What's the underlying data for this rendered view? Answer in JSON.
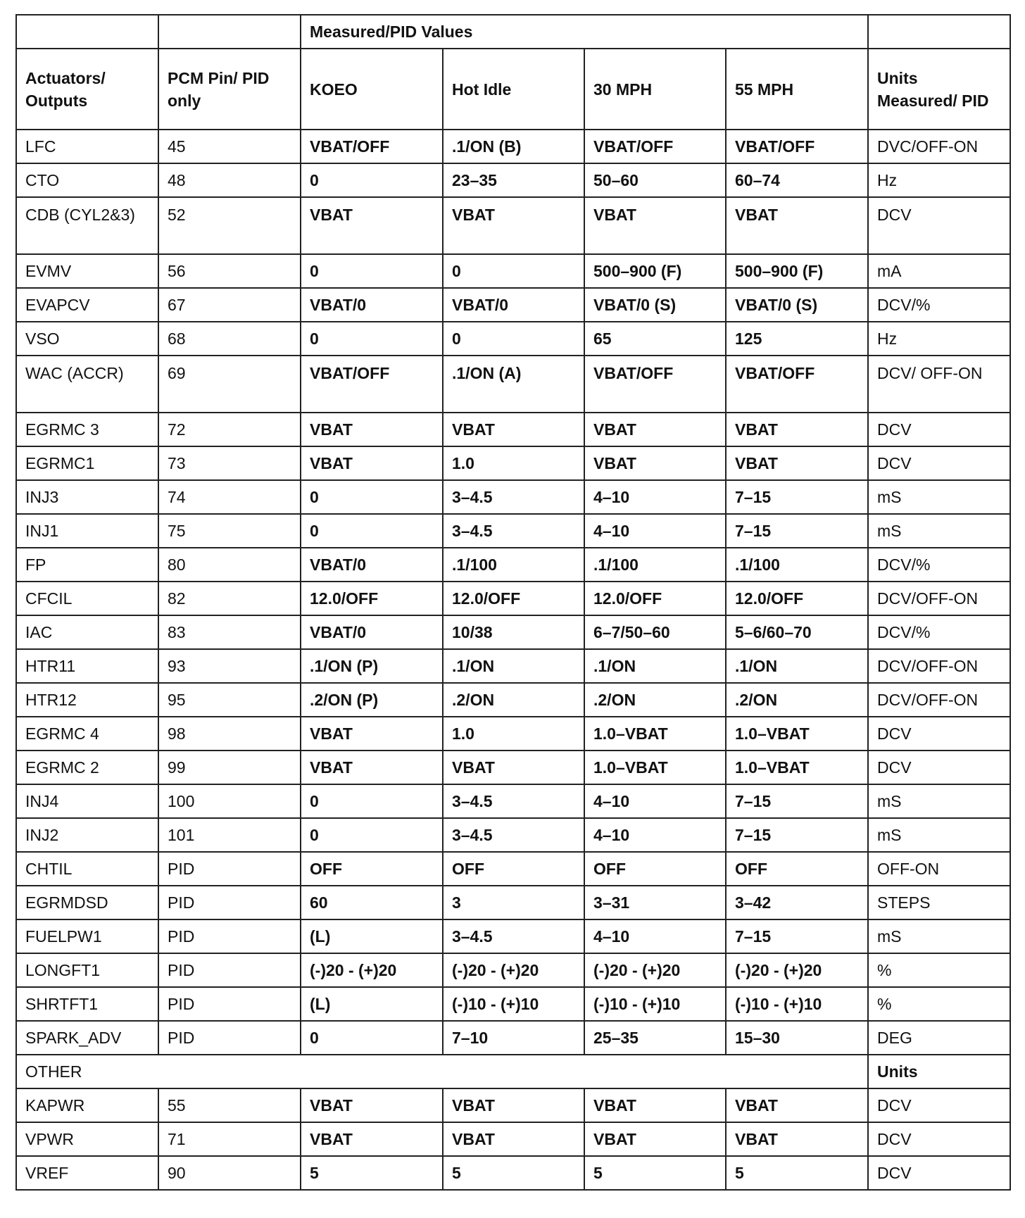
{
  "header": {
    "group_label": "Measured/PID Values",
    "columns": [
      "Actuators/ Outputs",
      "PCM Pin/ PID only",
      "KOEO",
      "Hot Idle",
      "30 MPH",
      "55 MPH",
      "Units Measured/ PID"
    ]
  },
  "rows": [
    [
      "LFC",
      "45",
      "VBAT/OFF",
      ".1/ON (B)",
      "VBAT/OFF",
      "VBAT/OFF",
      "DVC/OFF-ON"
    ],
    [
      "CTO",
      "48",
      "0",
      "23–35",
      "50–60",
      "60–74",
      "Hz"
    ],
    [
      "CDB (CYL2&3)",
      "52",
      "VBAT",
      "VBAT",
      "VBAT",
      "VBAT",
      "DCV"
    ],
    [
      "EVMV",
      "56",
      "0",
      "0",
      "500–900 (F)",
      "500–900 (F)",
      "mA"
    ],
    [
      "EVAPCV",
      "67",
      "VBAT/0",
      "VBAT/0",
      "VBAT/0 (S)",
      "VBAT/0 (S)",
      "DCV/%"
    ],
    [
      "VSO",
      "68",
      "0",
      "0",
      "65",
      "125",
      "Hz"
    ],
    [
      "WAC (ACCR)",
      "69",
      "VBAT/OFF",
      ".1/ON (A)",
      "VBAT/OFF",
      "VBAT/OFF",
      "DCV/ OFF-ON"
    ],
    [
      "EGRMC 3",
      "72",
      "VBAT",
      "VBAT",
      "VBAT",
      "VBAT",
      "DCV"
    ],
    [
      "EGRMC1",
      "73",
      "VBAT",
      "1.0",
      "VBAT",
      "VBAT",
      "DCV"
    ],
    [
      "INJ3",
      "74",
      "0",
      "3–4.5",
      "4–10",
      "7–15",
      "mS"
    ],
    [
      "INJ1",
      "75",
      "0",
      "3–4.5",
      "4–10",
      "7–15",
      "mS"
    ],
    [
      "FP",
      "80",
      "VBAT/0",
      ".1/100",
      ".1/100",
      ".1/100",
      "DCV/%"
    ],
    [
      "CFCIL",
      "82",
      "12.0/OFF",
      "12.0/OFF",
      "12.0/OFF",
      "12.0/OFF",
      "DCV/OFF-ON"
    ],
    [
      "IAC",
      "83",
      "VBAT/0",
      "10/38",
      "6–7/50–60",
      "5–6/60–70",
      "DCV/%"
    ],
    [
      "HTR11",
      "93",
      ".1/ON (P)",
      ".1/ON",
      ".1/ON",
      ".1/ON",
      "DCV/OFF-ON"
    ],
    [
      "HTR12",
      "95",
      ".2/ON (P)",
      ".2/ON",
      ".2/ON",
      ".2/ON",
      "DCV/OFF-ON"
    ],
    [
      "EGRMC 4",
      "98",
      "VBAT",
      "1.0",
      "1.0–VBAT",
      "1.0–VBAT",
      "DCV"
    ],
    [
      "EGRMC 2",
      "99",
      "VBAT",
      "VBAT",
      "1.0–VBAT",
      "1.0–VBAT",
      "DCV"
    ],
    [
      "INJ4",
      "100",
      "0",
      "3–4.5",
      "4–10",
      "7–15",
      "mS"
    ],
    [
      "INJ2",
      "101",
      "0",
      "3–4.5",
      "4–10",
      "7–15",
      "mS"
    ],
    [
      "CHTIL",
      "PID",
      "OFF",
      "OFF",
      "OFF",
      "OFF",
      "OFF-ON"
    ],
    [
      "EGRMDSD",
      "PID",
      "60",
      "3",
      "3–31",
      "3–42",
      "STEPS"
    ],
    [
      "FUELPW1",
      "PID",
      "(L)",
      "3–4.5",
      "4–10",
      "7–15",
      "mS"
    ],
    [
      "LONGFT1",
      "PID",
      "(-)20 - (+)20",
      "(-)20 - (+)20",
      "(-)20 - (+)20",
      "(-)20 - (+)20",
      "%"
    ],
    [
      "SHRTFT1",
      "PID",
      "(L)",
      "(-)10 - (+)10",
      "(-)10 - (+)10",
      "(-)10 - (+)10",
      "%"
    ],
    [
      "SPARK_ADV",
      "PID",
      "0",
      "7–10",
      "25–35",
      "15–30",
      "DEG"
    ]
  ],
  "other": {
    "label": "OTHER",
    "units_label": "Units",
    "rows": [
      [
        "KAPWR",
        "55",
        "VBAT",
        "VBAT",
        "VBAT",
        "VBAT",
        "DCV"
      ],
      [
        "VPWR",
        "71",
        "VBAT",
        "VBAT",
        "VBAT",
        "VBAT",
        "DCV"
      ],
      [
        "VREF",
        "90",
        "5",
        "5",
        "5",
        "5",
        "DCV"
      ]
    ]
  }
}
